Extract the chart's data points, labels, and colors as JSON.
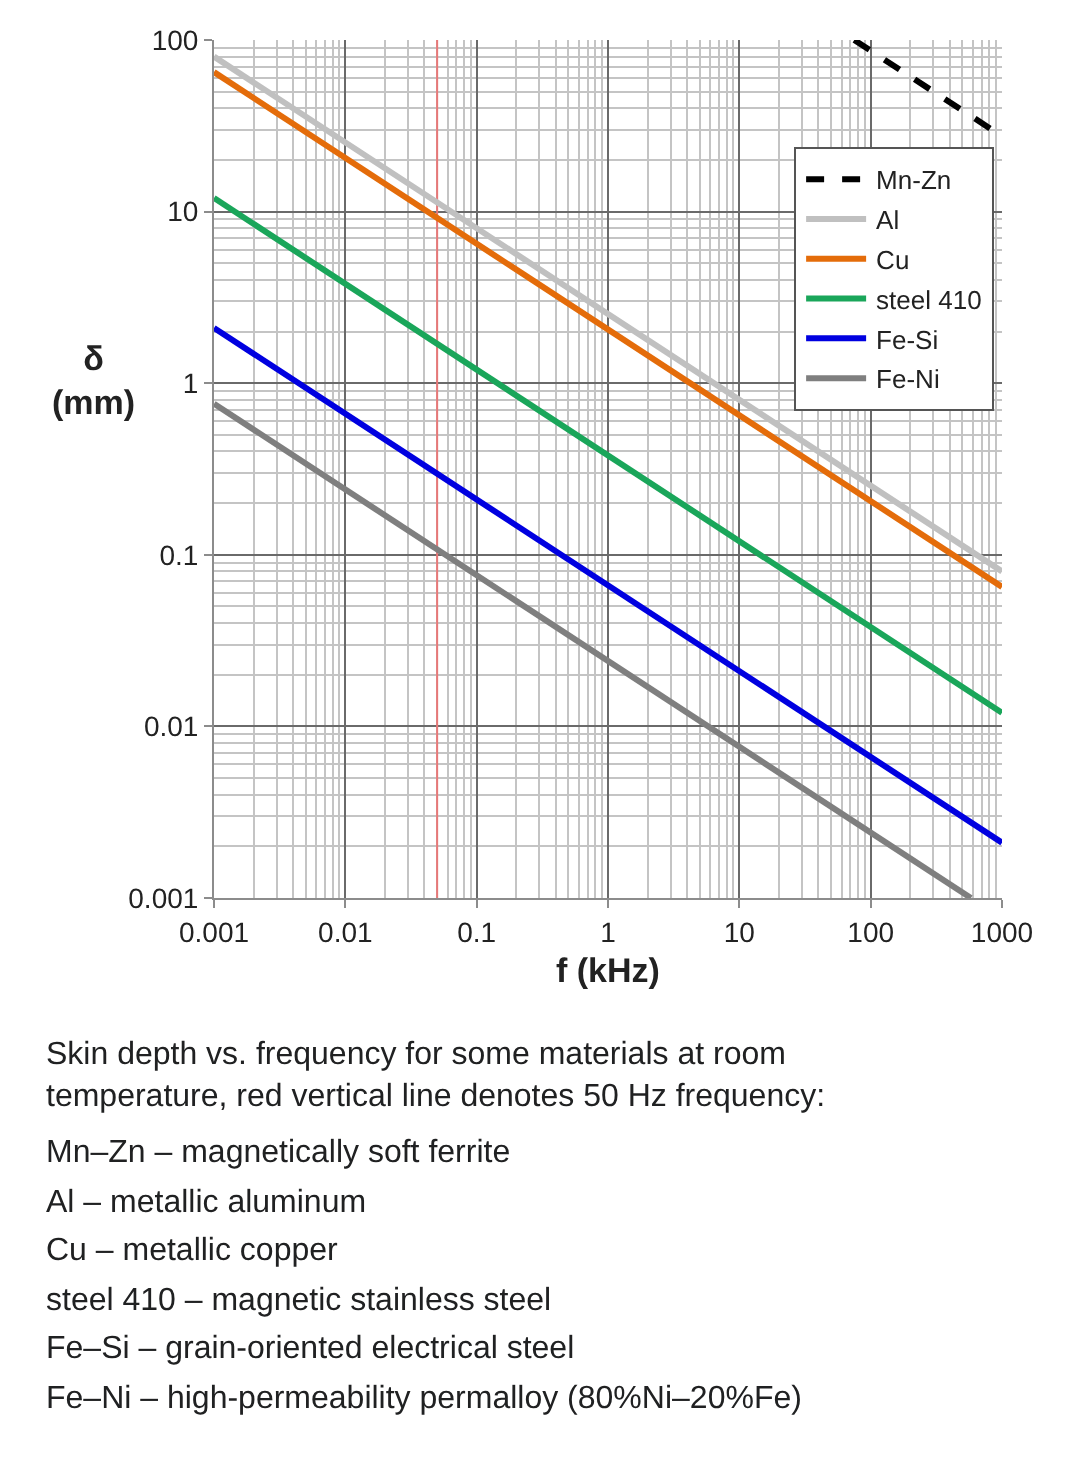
{
  "chart_data": {
    "type": "line",
    "xlabel": "f (kHz)",
    "ylabel": "δ\n(mm)",
    "log": "xy",
    "grid": true,
    "legend": "top right",
    "line_style": "solid",
    "xlim": [
      0.001,
      1000
    ],
    "xticks": [
      0.001,
      0.01,
      0.1,
      1,
      10,
      100,
      1000
    ],
    "ylim": [
      0.001,
      100
    ],
    "yticks": [
      0.001,
      0.01,
      0.1,
      1,
      10,
      100
    ],
    "series": [
      {
        "name": "Mn-Zn",
        "color": "#000000",
        "line_style": "dashed",
        "x": [
          75,
          1000
        ],
        "values": [
          100,
          27.5
        ]
      },
      {
        "name": "Al",
        "color": "#c0c0c0",
        "x": [
          0.001,
          1000
        ],
        "values": [
          80,
          0.08
        ]
      },
      {
        "name": "Cu",
        "color": "#e46c0a",
        "x": [
          0.001,
          1000
        ],
        "values": [
          65,
          0.065
        ]
      },
      {
        "name": "steel 410",
        "color": "#1aa65a",
        "x": [
          0.001,
          1000
        ],
        "values": [
          12,
          0.012
        ]
      },
      {
        "name": "Fe-Si",
        "color": "#0000e0",
        "x": [
          0.001,
          1000
        ],
        "values": [
          2.1,
          0.0021
        ]
      },
      {
        "name": "Fe-Ni",
        "color": "#7f7f7f",
        "x": [
          0.001,
          580
        ],
        "values": [
          0.76,
          0.001
        ]
      }
    ],
    "ref_lines": [
      {
        "axis": "x",
        "value": 0.05,
        "color": "#e87878"
      }
    ],
    "annotations": [
      "Skin depth vs. frequency for some materials at room temperature, red vertical line denotes 50 Hz frequency:",
      "Mn–Zn – magnetically soft ferrite",
      "Al – metallic aluminum",
      "Cu – metallic copper",
      "steel 410 – magnetic stainless steel",
      "Fe–Si – grain-oriented electrical steel",
      "Fe–Ni – high-permeability permalloy (80%Ni–20%Fe)"
    ]
  }
}
